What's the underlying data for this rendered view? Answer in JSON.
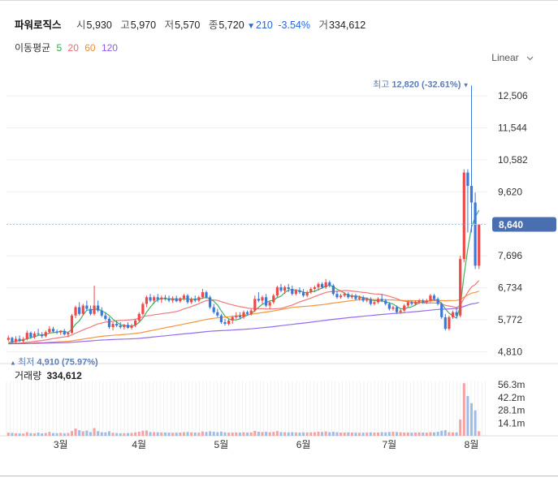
{
  "header": {
    "name": "파워로직스",
    "open_label": "시",
    "open": "5,930",
    "high_label": "고",
    "high": "5,970",
    "low_label": "저",
    "low": "5,570",
    "close_label": "종",
    "close": "5,720",
    "change_icon": "triangle-down-icon",
    "change": "210",
    "change_pct": "-3.54%",
    "volume_label": "거",
    "volume": "334,612"
  },
  "moving_average": {
    "label": "이동평균",
    "periods": [
      {
        "label": "5",
        "color": "#2fa84f"
      },
      {
        "label": "20",
        "color": "#f0696b"
      },
      {
        "label": "60",
        "color": "#f28b2e"
      },
      {
        "label": "120",
        "color": "#8a5cf0"
      }
    ]
  },
  "scale_selector": {
    "value": "Linear",
    "icon": "chevron-down-icon"
  },
  "volume_panel": {
    "label": "거래량",
    "value": "334,612"
  },
  "colors": {
    "up": "#ed4b4b",
    "down": "#3c78d8",
    "price_tag": "#4a6fb0",
    "annotation": "#5b7db5"
  },
  "chart_data": {
    "type": "candlestick",
    "price_axis": {
      "ticks": [
        4810,
        5772,
        6734,
        7696,
        8658,
        9620,
        10582,
        11544,
        12506
      ],
      "tick_labels": [
        "4,810",
        "5,772",
        "6,734",
        "7,696",
        "",
        "9,620",
        "10,582",
        "11,544",
        "12,506"
      ],
      "ylim": [
        4650,
        12950
      ]
    },
    "x_axis": {
      "labels": [
        "3월",
        "4월",
        "5월",
        "6월",
        "7월",
        "8월"
      ]
    },
    "current_price": {
      "label": "8,640",
      "value": 8640
    },
    "max_annotation": {
      "label": "최고",
      "value": 12820,
      "text": "12,820 (-32.61%)"
    },
    "min_annotation": {
      "label": "최저",
      "value": 4910,
      "text": "4,910 (75.97%)"
    },
    "volume_axis": {
      "ticks": [
        "56.3m",
        "42.2m",
        "28.1m",
        "14.1m"
      ],
      "tick_values": [
        56.3,
        42.2,
        28.1,
        14.1
      ]
    },
    "candles": [
      [
        5170,
        5300,
        5120,
        5230
      ],
      [
        5230,
        5260,
        5060,
        5110
      ],
      [
        5110,
        5280,
        5050,
        5200
      ],
      [
        5200,
        5300,
        5100,
        5130
      ],
      [
        5130,
        5250,
        5080,
        5190
      ],
      [
        5190,
        5450,
        5150,
        5380
      ],
      [
        5380,
        5420,
        5200,
        5250
      ],
      [
        5250,
        5420,
        5200,
        5360
      ],
      [
        5360,
        5500,
        5300,
        5330
      ],
      [
        5330,
        5400,
        5220,
        5280
      ],
      [
        5280,
        5450,
        5240,
        5400
      ],
      [
        5400,
        5580,
        5350,
        5500
      ],
      [
        5500,
        5560,
        5380,
        5420
      ],
      [
        5420,
        5480,
        5340,
        5390
      ],
      [
        5390,
        5460,
        5320,
        5440
      ],
      [
        5440,
        5500,
        5300,
        5330
      ],
      [
        5330,
        5420,
        5250,
        5380
      ],
      [
        5380,
        5950,
        5350,
        5900
      ],
      [
        5900,
        6200,
        5820,
        6150
      ],
      [
        6150,
        6300,
        5900,
        5950
      ],
      [
        5950,
        6250,
        5900,
        6200
      ],
      [
        6200,
        6350,
        6050,
        6100
      ],
      [
        6100,
        6200,
        5900,
        5950
      ],
      [
        5950,
        6800,
        5900,
        6200
      ],
      [
        6200,
        6350,
        6000,
        6050
      ],
      [
        6050,
        6150,
        5850,
        5900
      ],
      [
        5900,
        6000,
        5750,
        5800
      ],
      [
        5800,
        5850,
        5500,
        5550
      ],
      [
        5550,
        5700,
        5450,
        5650
      ],
      [
        5650,
        5750,
        5550,
        5600
      ],
      [
        5600,
        5700,
        5500,
        5550
      ],
      [
        5550,
        5650,
        5480,
        5620
      ],
      [
        5620,
        5700,
        5500,
        5530
      ],
      [
        5530,
        5650,
        5480,
        5600
      ],
      [
        5600,
        5800,
        5550,
        5750
      ],
      [
        5750,
        6000,
        5700,
        5950
      ],
      [
        5950,
        6300,
        5900,
        6250
      ],
      [
        6250,
        6500,
        6150,
        6450
      ],
      [
        6450,
        6550,
        6300,
        6350
      ],
      [
        6350,
        6500,
        6250,
        6450
      ],
      [
        6450,
        6550,
        6300,
        6380
      ],
      [
        6380,
        6500,
        6280,
        6440
      ],
      [
        6440,
        6520,
        6350,
        6400
      ],
      [
        6400,
        6500,
        6300,
        6350
      ],
      [
        6350,
        6480,
        6280,
        6420
      ],
      [
        6420,
        6500,
        6300,
        6330
      ],
      [
        6330,
        6450,
        6280,
        6420
      ],
      [
        6420,
        6550,
        6350,
        6500
      ],
      [
        6500,
        6550,
        6250,
        6300
      ],
      [
        6300,
        6450,
        6250,
        6400
      ],
      [
        6400,
        6500,
        6300,
        6350
      ],
      [
        6350,
        6500,
        6300,
        6450
      ],
      [
        6450,
        6700,
        6400,
        6600
      ],
      [
        6600,
        6650,
        6400,
        6450
      ],
      [
        6450,
        6500,
        6100,
        6150
      ],
      [
        6150,
        6250,
        5950,
        6000
      ],
      [
        6000,
        6100,
        5850,
        5900
      ],
      [
        5900,
        5950,
        5650,
        5700
      ],
      [
        5700,
        5800,
        5600,
        5650
      ],
      [
        5650,
        5800,
        5600,
        5750
      ],
      [
        5750,
        5900,
        5650,
        5850
      ],
      [
        5850,
        6000,
        5800,
        5900
      ],
      [
        5900,
        6000,
        5800,
        5850
      ],
      [
        5850,
        6050,
        5800,
        6000
      ],
      [
        6000,
        6050,
        5900,
        5950
      ],
      [
        5950,
        6100,
        5900,
        6050
      ],
      [
        6050,
        6500,
        6000,
        6400
      ],
      [
        6400,
        6600,
        6300,
        6350
      ],
      [
        6350,
        6500,
        6250,
        6450
      ],
      [
        6450,
        6550,
        6150,
        6200
      ],
      [
        6200,
        6350,
        6100,
        6300
      ],
      [
        6300,
        6550,
        6250,
        6500
      ],
      [
        6500,
        6800,
        6450,
        6750
      ],
      [
        6750,
        6850,
        6600,
        6650
      ],
      [
        6650,
        6800,
        6550,
        6750
      ],
      [
        6750,
        6850,
        6600,
        6700
      ],
      [
        6700,
        6800,
        6500,
        6550
      ],
      [
        6550,
        6700,
        6500,
        6650
      ],
      [
        6650,
        6750,
        6550,
        6600
      ],
      [
        6600,
        6700,
        6450,
        6500
      ],
      [
        6500,
        6650,
        6450,
        6600
      ],
      [
        6600,
        6750,
        6550,
        6700
      ],
      [
        6700,
        6800,
        6600,
        6750
      ],
      [
        6750,
        6900,
        6650,
        6850
      ],
      [
        6850,
        6900,
        6700,
        6750
      ],
      [
        6750,
        7000,
        6700,
        6900
      ],
      [
        6900,
        6950,
        6750,
        6800
      ],
      [
        6800,
        6850,
        6500,
        6550
      ],
      [
        6550,
        6650,
        6400,
        6450
      ],
      [
        6450,
        6550,
        6400,
        6500
      ],
      [
        6500,
        6600,
        6450,
        6550
      ],
      [
        6550,
        6600,
        6400,
        6450
      ],
      [
        6450,
        6550,
        6400,
        6500
      ],
      [
        6500,
        6550,
        6350,
        6400
      ],
      [
        6400,
        6500,
        6350,
        6450
      ],
      [
        6450,
        6500,
        6300,
        6350
      ],
      [
        6350,
        6450,
        6300,
        6400
      ],
      [
        6400,
        6450,
        6200,
        6250
      ],
      [
        6250,
        6350,
        6200,
        6300
      ],
      [
        6300,
        6450,
        6250,
        6400
      ],
      [
        6400,
        6550,
        6300,
        6350
      ],
      [
        6350,
        6400,
        6200,
        6250
      ],
      [
        6250,
        6300,
        6050,
        6100
      ],
      [
        6100,
        6200,
        6050,
        6150
      ],
      [
        6150,
        6200,
        5950,
        6000
      ],
      [
        6000,
        6100,
        5950,
        6050
      ],
      [
        6050,
        6250,
        6000,
        6200
      ],
      [
        6200,
        6350,
        6150,
        6300
      ],
      [
        6300,
        6350,
        6200,
        6250
      ],
      [
        6250,
        6350,
        6200,
        6300
      ],
      [
        6300,
        6400,
        6250,
        6350
      ],
      [
        6350,
        6400,
        6250,
        6300
      ],
      [
        6300,
        6400,
        6250,
        6350
      ],
      [
        6350,
        6550,
        6300,
        6500
      ],
      [
        6500,
        6550,
        6350,
        6400
      ],
      [
        6400,
        6450,
        6200,
        6250
      ],
      [
        6250,
        6300,
        5800,
        5850
      ],
      [
        5850,
        5950,
        5450,
        5500
      ],
      [
        5500,
        5900,
        5450,
        5850
      ],
      [
        5850,
        6050,
        5800,
        6000
      ],
      [
        6000,
        6150,
        5850,
        5900
      ],
      [
        5900,
        7700,
        5850,
        7600
      ],
      [
        7600,
        10300,
        7500,
        10200
      ],
      [
        10200,
        10300,
        8400,
        9800
      ],
      [
        9800,
        12820,
        8400,
        9300
      ],
      [
        9300,
        9600,
        7300,
        7400
      ],
      [
        7400,
        8640,
        7300,
        8640
      ]
    ],
    "volumes_m": [
      3.5,
      3.2,
      2.8,
      2.6,
      2.5,
      4.0,
      3.0,
      2.8,
      3.5,
      2.7,
      3.1,
      4.2,
      3.0,
      2.9,
      3.2,
      2.8,
      3.1,
      5.2,
      8.0,
      6.2,
      5.0,
      5.8,
      4.1,
      8.5,
      5.2,
      4.0,
      3.8,
      5.0,
      3.4,
      3.0,
      2.8,
      2.9,
      3.1,
      3.2,
      3.8,
      4.5,
      5.6,
      5.9,
      4.2,
      4.0,
      3.9,
      3.8,
      3.6,
      3.5,
      3.4,
      3.5,
      3.6,
      4.0,
      4.2,
      3.8,
      3.6,
      3.5,
      4.8,
      4.2,
      5.0,
      4.4,
      4.0,
      4.6,
      3.8,
      3.5,
      3.6,
      3.7,
      3.5,
      3.9,
      3.6,
      3.8,
      5.5,
      4.5,
      4.2,
      4.4,
      3.9,
      4.3,
      5.2,
      4.1,
      3.9,
      3.8,
      4.0,
      3.7,
      3.6,
      3.8,
      3.7,
      3.9,
      4.0,
      4.5,
      4.2,
      4.8,
      4.0,
      4.4,
      3.9,
      3.6,
      3.7,
      3.8,
      3.6,
      3.5,
      3.4,
      3.5,
      3.6,
      3.8,
      3.5,
      3.7,
      4.0,
      3.8,
      4.2,
      4.5,
      4.1,
      3.9,
      3.6,
      3.7,
      3.5,
      3.6,
      3.8,
      3.6,
      3.5,
      4.0,
      3.8,
      4.4,
      5.5,
      6.2,
      4.0,
      3.8,
      3.7,
      18.0,
      58.0,
      44.0,
      36.0,
      28.0,
      5.0
    ],
    "ma_periods": [
      5,
      20,
      60,
      120
    ]
  }
}
